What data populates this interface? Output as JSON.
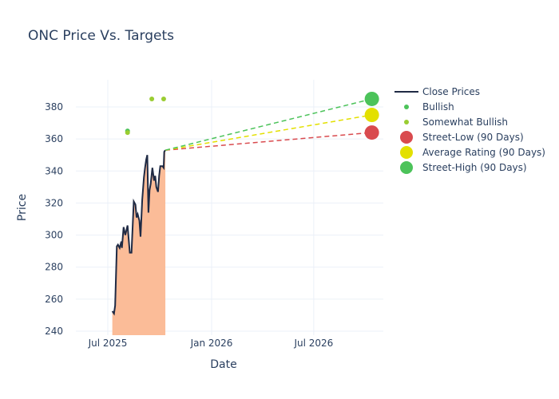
{
  "chart_data": {
    "type": "line",
    "title": "ONC Price Vs. Targets",
    "xlabel": "Date",
    "ylabel": "Price",
    "ylim": [
      238,
      398
    ],
    "xlim": [
      "2025-05-15",
      "2026-11-20"
    ],
    "yticks": [
      240,
      260,
      280,
      300,
      320,
      340,
      360,
      380
    ],
    "xticks": [
      {
        "date": "2025-07-01",
        "label": "Jul 2025"
      },
      {
        "date": "2026-01-01",
        "label": "Jan 2026"
      },
      {
        "date": "2026-07-01",
        "label": "Jul 2026"
      }
    ],
    "grid": true,
    "legend_position": "right",
    "close_prices": {
      "name": "Close Prices",
      "color": "#1f2a44",
      "fill_color": "#fbbc98",
      "dates": [
        "2025-07-09",
        "2025-07-12",
        "2025-07-14",
        "2025-07-17",
        "2025-07-19",
        "2025-07-22",
        "2025-07-25",
        "2025-07-26",
        "2025-07-29",
        "2025-08-01",
        "2025-08-05",
        "2025-08-09",
        "2025-08-12",
        "2025-08-16",
        "2025-08-19",
        "2025-08-21",
        "2025-08-23",
        "2025-08-26",
        "2025-08-28",
        "2025-08-31",
        "2025-09-03",
        "2025-09-05",
        "2025-09-07",
        "2025-09-09",
        "2025-09-11",
        "2025-09-13",
        "2025-09-15",
        "2025-09-18",
        "2025-09-21",
        "2025-09-23",
        "2025-09-25",
        "2025-09-28",
        "2025-09-30",
        "2025-10-02",
        "2025-10-06",
        "2025-10-08",
        "2025-10-09",
        "2025-10-11"
      ],
      "values": [
        252.5,
        251,
        256,
        293,
        294,
        292,
        296,
        292,
        305,
        300,
        306,
        289,
        289,
        321,
        319,
        311,
        313,
        309,
        299,
        322,
        336,
        342,
        347,
        350,
        314,
        328,
        332,
        342,
        334,
        337,
        330,
        327,
        337,
        343,
        343,
        342,
        352,
        353
      ]
    },
    "ratings": [
      {
        "name": "Bullish",
        "color": "#4cc35a",
        "points": [
          {
            "date": "2025-08-05",
            "value": 365
          }
        ]
      },
      {
        "name": "Somewhat Bullish",
        "color": "#9acd32",
        "points": [
          {
            "date": "2025-08-05",
            "value": 364
          },
          {
            "date": "2025-09-17",
            "value": 385
          },
          {
            "date": "2025-10-08",
            "value": 385
          }
        ]
      }
    ],
    "targets": {
      "start": {
        "date": "2025-10-11",
        "value": 353
      },
      "date": "2026-10-12",
      "series": [
        {
          "name": "Street-Low (90 Days)",
          "value": 364,
          "color": "#d94a4e"
        },
        {
          "name": "Average Rating (90 Days)",
          "value": 375,
          "color": "#e3e000"
        },
        {
          "name": "Street-High (90 Days)",
          "value": 385,
          "color": "#4cc35a"
        }
      ]
    }
  }
}
